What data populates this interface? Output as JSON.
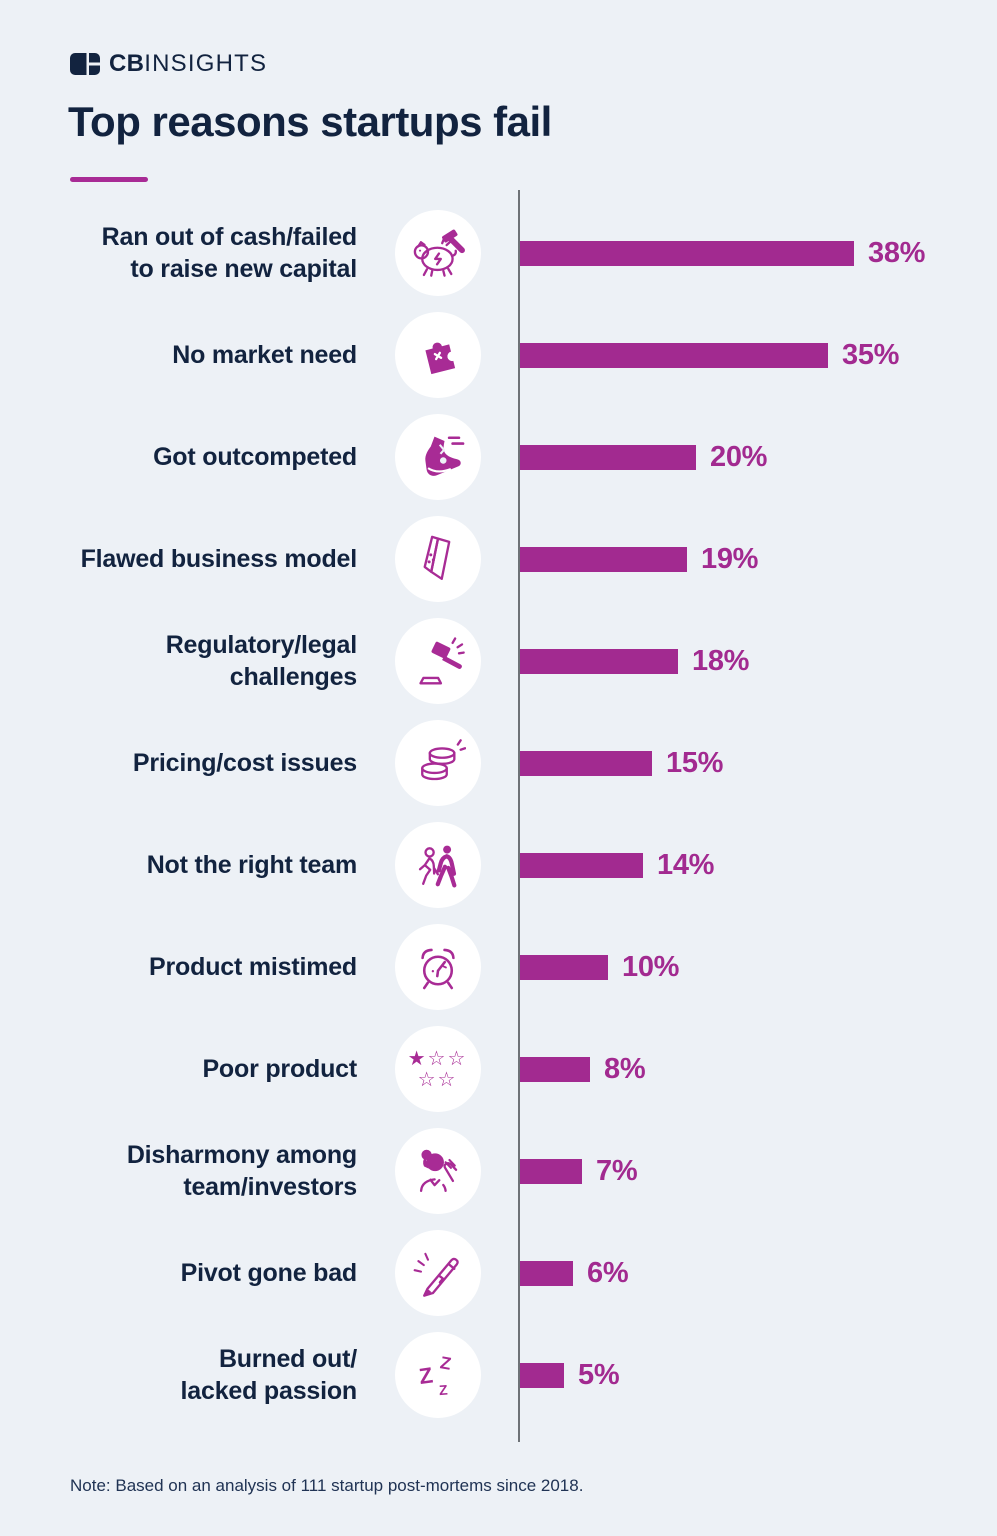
{
  "logo": {
    "bold": "CB",
    "light": "INSIGHTS"
  },
  "header": {
    "title": "Top reasons startups fail"
  },
  "footer": {
    "note": "Note: Based on an analysis of 111 startup post-mortems since 2018."
  },
  "colors": {
    "background": "#edf1f6",
    "accent": "#a82b95",
    "bar": "#a22a90",
    "navy": "#12233f",
    "axis_line": "#6e7277",
    "icon_circle": "#ffffff"
  },
  "chart_data": {
    "type": "bar",
    "orientation": "horizontal",
    "title": "Top reasons startups fail",
    "unit": "percent",
    "xlim": [
      0,
      40
    ],
    "grid": false,
    "categories": [
      "Ran out of cash/failed to raise new capital",
      "No market need",
      "Got outcompeted",
      "Flawed business model",
      "Regulatory/legal challenges",
      "Pricing/cost issues",
      "Not the right team",
      "Product mistimed",
      "Poor product",
      "Disharmony among team/investors",
      "Pivot gone bad",
      "Burned out/lacked passion"
    ],
    "values": [
      38,
      35,
      20,
      19,
      18,
      15,
      14,
      10,
      8,
      7,
      6,
      5
    ],
    "value_labels": [
      "38%",
      "35%",
      "20%",
      "19%",
      "18%",
      "15%",
      "14%",
      "10%",
      "8%",
      "7%",
      "6%",
      "5%"
    ],
    "label_lines": [
      [
        "Ran out of cash/failed",
        "to raise new capital"
      ],
      [
        "No market need"
      ],
      [
        "Got outcompeted"
      ],
      [
        "Flawed business model"
      ],
      [
        "Regulatory/legal",
        "challenges"
      ],
      [
        "Pricing/cost issues"
      ],
      [
        "Not the right team"
      ],
      [
        "Product mistimed"
      ],
      [
        "Poor product"
      ],
      [
        "Disharmony among",
        "team/investors"
      ],
      [
        "Pivot gone bad"
      ],
      [
        "Burned out/",
        "lacked passion"
      ]
    ],
    "icon_names": [
      "piggy-bank-hammer-icon",
      "puzzle-piece-icon",
      "sneaker-icon",
      "collapsed-card-icon",
      "gavel-icon",
      "coins-icon",
      "walking-people-icon",
      "alarm-clock-icon",
      "star-rating-icon",
      "facepalm-person-icon",
      "pencil-icon",
      "zzz-icon"
    ]
  }
}
